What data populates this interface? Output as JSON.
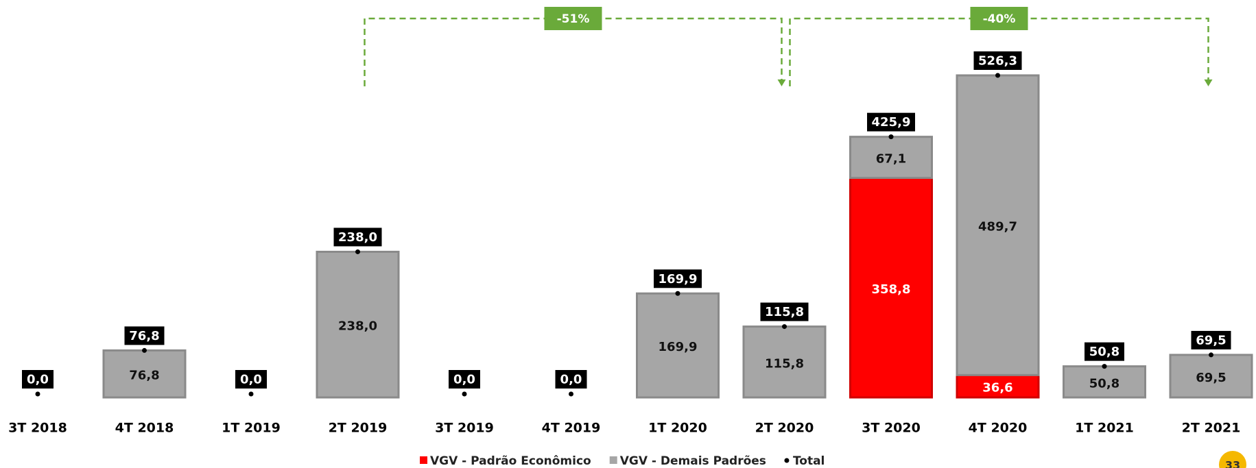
{
  "chart_data": {
    "type": "bar",
    "stacked": true,
    "categories": [
      "3T 2018",
      "4T 2018",
      "1T 2019",
      "2T 2019",
      "3T 2019",
      "4T 2019",
      "1T 2020",
      "2T 2020",
      "3T 2020",
      "4T 2020",
      "1T 2021",
      "2T 2021"
    ],
    "series": [
      {
        "name": "VGV - Padrão Econômico",
        "color": "#ff0000",
        "values": [
          0,
          0,
          0,
          0,
          0,
          0,
          0,
          0,
          358.8,
          36.6,
          0,
          0
        ],
        "value_labels": [
          null,
          null,
          null,
          null,
          null,
          null,
          null,
          null,
          "358,8",
          "36,6",
          null,
          null
        ]
      },
      {
        "name": "VGV - Demais Padrões",
        "color": "#a6a6a6",
        "values": [
          0,
          76.8,
          0,
          238.0,
          0,
          0,
          169.9,
          115.8,
          67.1,
          489.7,
          50.8,
          69.5
        ],
        "value_labels": [
          null,
          "76,8",
          null,
          "238,0",
          null,
          null,
          "169,9",
          "115,8",
          "67,1",
          "489,7",
          "50,8",
          "69,5"
        ]
      }
    ],
    "total": {
      "name": "Total",
      "color": "#000000",
      "values": [
        0,
        76.8,
        0,
        238.0,
        0,
        0,
        169.9,
        115.8,
        425.9,
        526.3,
        50.8,
        69.5
      ],
      "value_labels": [
        "0,0",
        "76,8",
        "0,0",
        "238,0",
        "0,0",
        "0,0",
        "169,9",
        "115,8",
        "425,9",
        "526,3",
        "50,8",
        "69,5"
      ]
    },
    "annotations": [
      {
        "label": "-51%",
        "from": "2T 2019",
        "to": "2T 2020",
        "color": "#6aaa3a"
      },
      {
        "label": "-40%",
        "from": "2T 2020",
        "to": "2T 2021",
        "color": "#6aaa3a"
      }
    ],
    "page_number": "33"
  }
}
